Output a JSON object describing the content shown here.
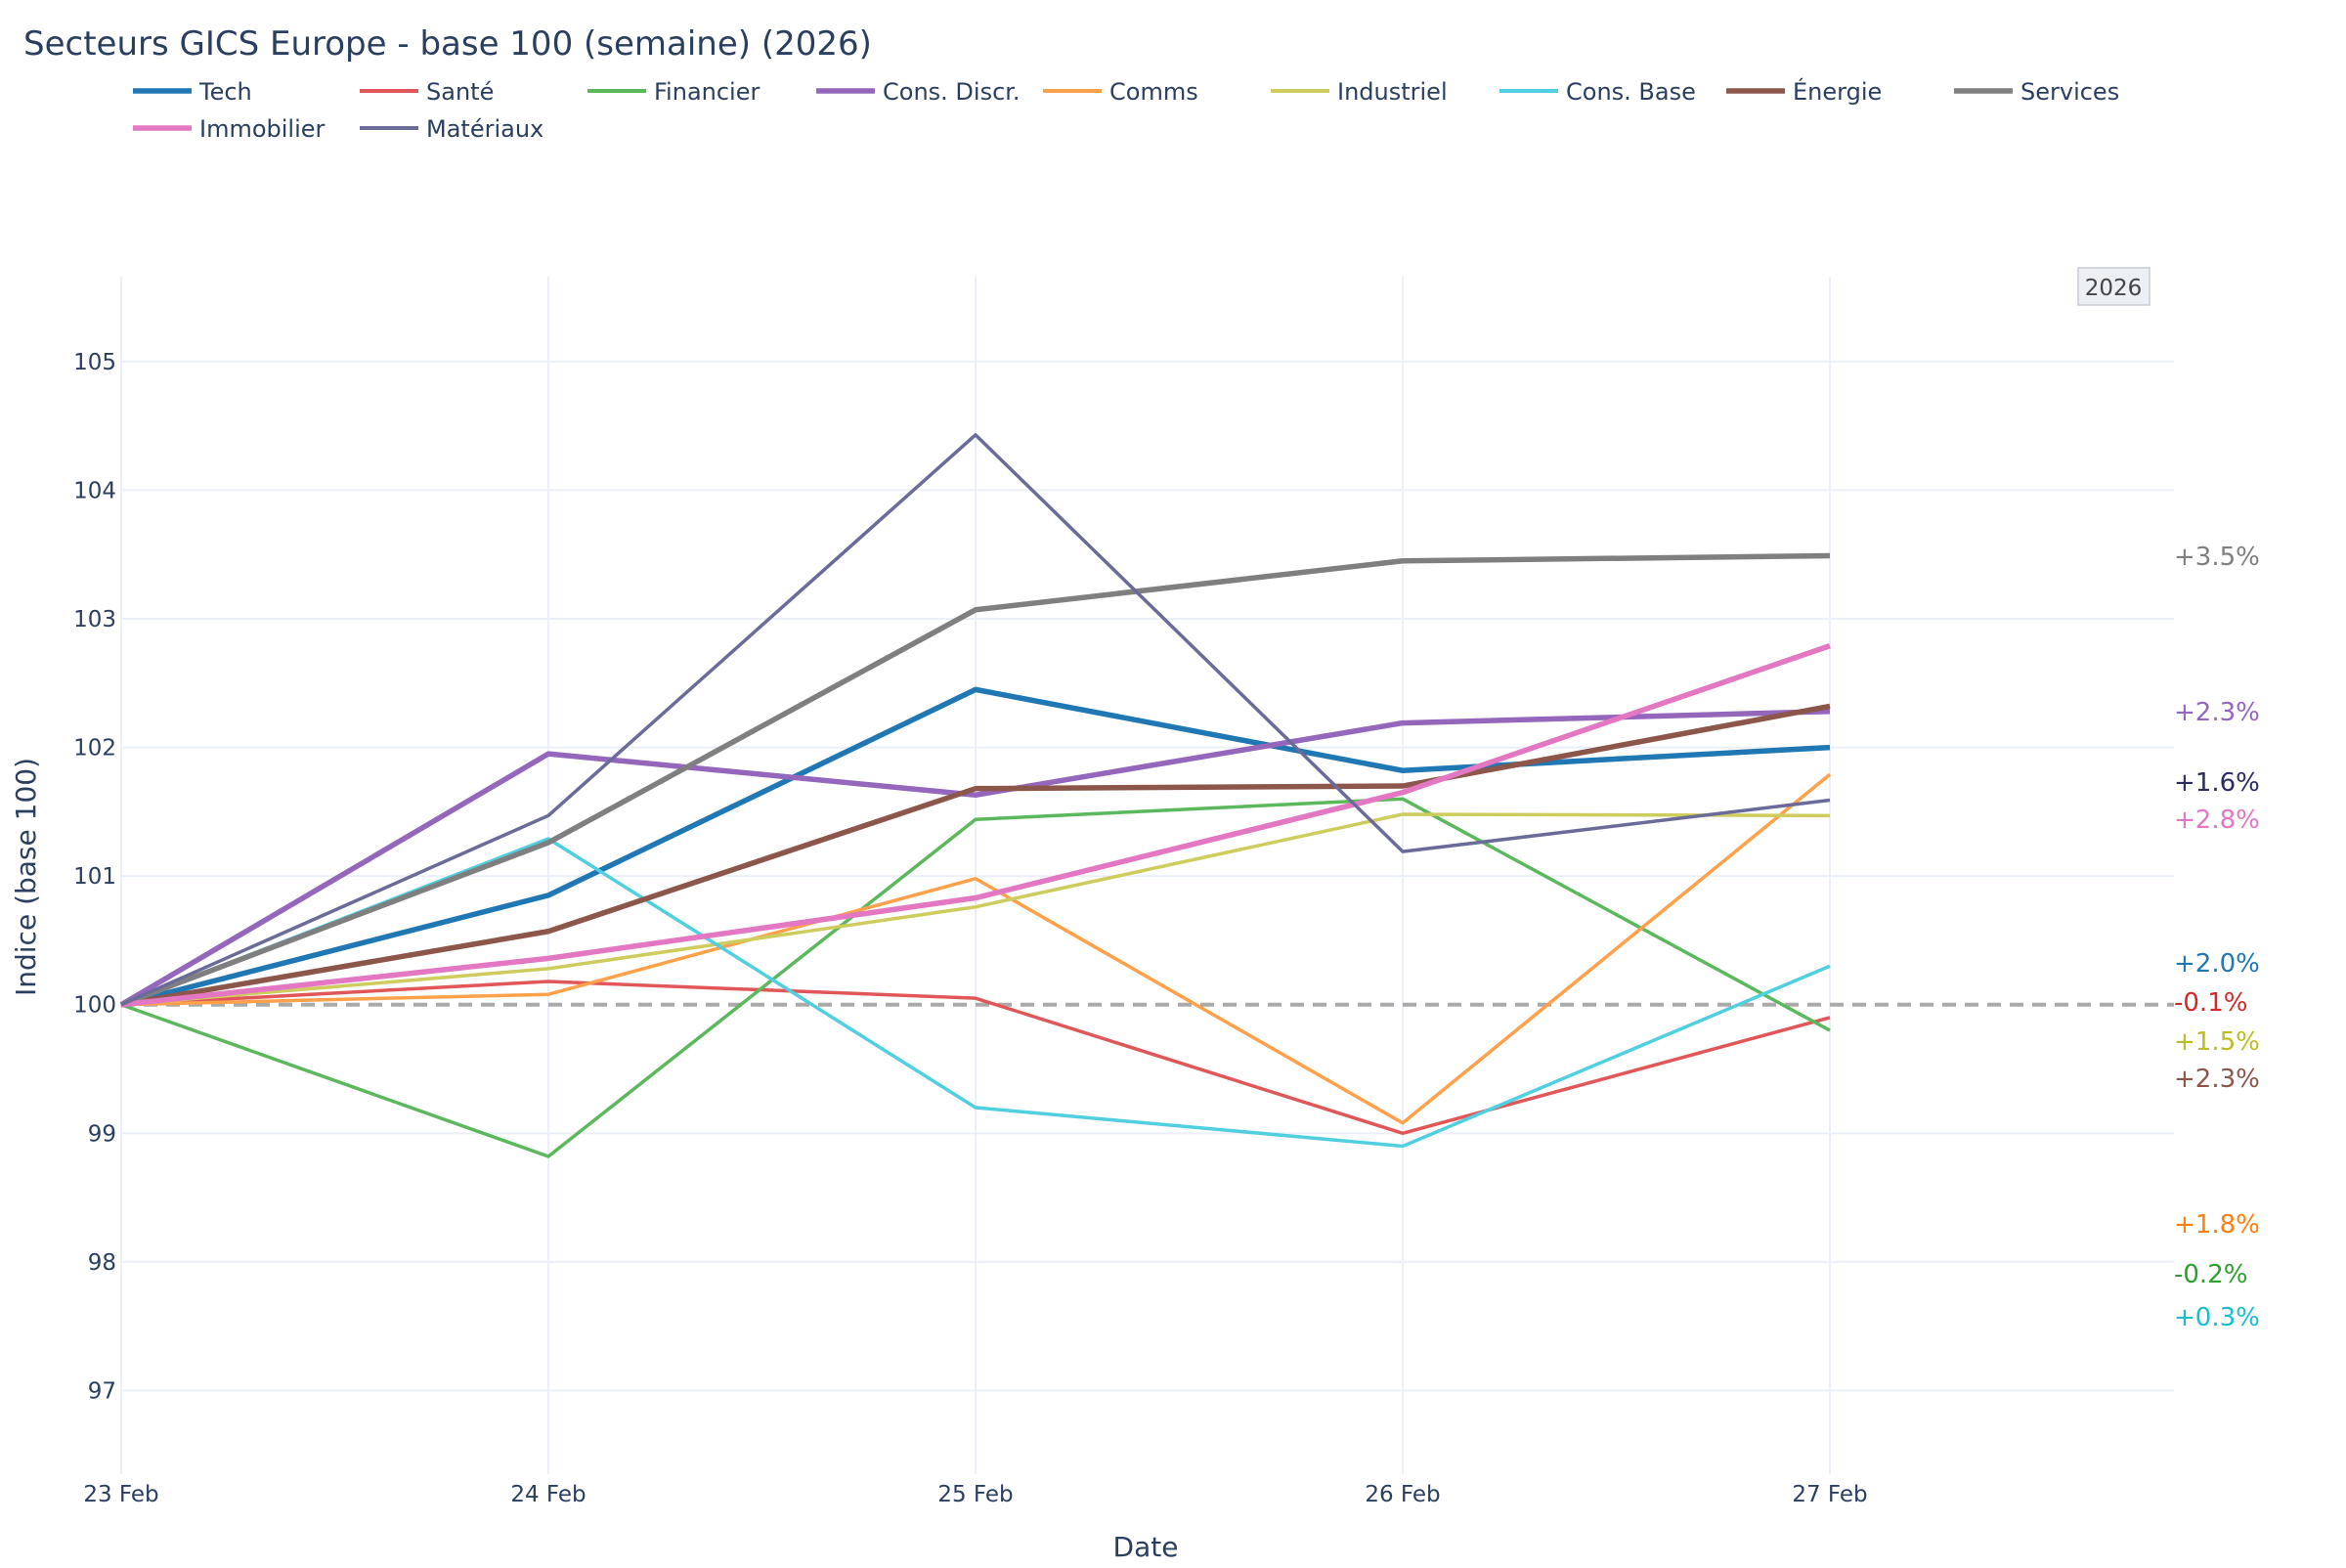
{
  "chart_data": {
    "type": "line",
    "title": "Secteurs GICS Europe - base 100 (semaine) (2026)",
    "xlabel": "Date",
    "ylabel": "Indice (base 100)",
    "categories": [
      "23 Feb",
      "24 Feb",
      "25 Feb",
      "26 Feb",
      "27 Feb"
    ],
    "ylim": [
      96.35,
      105.66
    ],
    "yticks": [
      97,
      98,
      99,
      100,
      101,
      102,
      103,
      104,
      105
    ],
    "grid": true,
    "legend_placement": "top-left",
    "reference_line": {
      "y": 100,
      "style": "dashed",
      "color": "#aaaaaa"
    },
    "year_badge": "2026",
    "series": [
      {
        "name": "Tech",
        "color": "#1f77b4",
        "bold": true,
        "values": [
          100,
          100.85,
          102.45,
          101.82,
          102.0
        ]
      },
      {
        "name": "Santé",
        "color": "#e15759",
        "bold": false,
        "values": [
          100,
          100.18,
          100.05,
          99.0,
          99.9
        ]
      },
      {
        "name": "Financier",
        "color": "#5cb85c",
        "bold": false,
        "values": [
          100,
          98.82,
          101.44,
          101.6,
          99.8
        ]
      },
      {
        "name": "Cons. Discr.",
        "color": "#9467bd",
        "bold": true,
        "values": [
          100,
          101.95,
          101.63,
          102.19,
          102.28
        ]
      },
      {
        "name": "Comms",
        "color": "#ffa04a",
        "bold": false,
        "values": [
          100,
          100.08,
          100.98,
          99.08,
          101.79
        ]
      },
      {
        "name": "Industriel",
        "color": "#cdcc5d",
        "bold": false,
        "values": [
          100,
          100.28,
          100.76,
          101.48,
          101.47
        ]
      },
      {
        "name": "Cons. Base",
        "color": "#4fcfe0",
        "bold": false,
        "values": [
          100,
          101.29,
          99.2,
          98.9,
          100.3
        ]
      },
      {
        "name": "Énergie",
        "color": "#8c564b",
        "bold": true,
        "values": [
          100,
          100.57,
          101.68,
          101.7,
          102.32
        ]
      },
      {
        "name": "Services",
        "color": "#7f7f7f",
        "bold": true,
        "values": [
          100,
          101.26,
          103.07,
          103.45,
          103.49
        ]
      },
      {
        "name": "Immobilier",
        "color": "#e377c2",
        "bold": true,
        "values": [
          100,
          100.36,
          100.83,
          101.65,
          102.79
        ]
      },
      {
        "name": "Matériaux",
        "color": "#6b6b9a",
        "bold": false,
        "values": [
          100,
          101.47,
          104.43,
          101.19,
          101.59
        ]
      }
    ],
    "annotations": [
      {
        "text": "+3.5%",
        "color": "#7f7f7f"
      },
      {
        "text": "+2.3%",
        "color": "#9467bd"
      },
      {
        "text": "+1.6%",
        "color": "#2b2b5e"
      },
      {
        "text": "+2.8%",
        "color": "#e377c2"
      },
      {
        "text": "+2.0%",
        "color": "#1f77b4"
      },
      {
        "text": "-0.1%",
        "color": "#d62728"
      },
      {
        "text": "+1.5%",
        "color": "#bcbd22"
      },
      {
        "text": "+2.3%",
        "color": "#8c564b"
      },
      {
        "text": "+1.8%",
        "color": "#ff7f0e"
      },
      {
        "text": "-0.2%",
        "color": "#2ca02c"
      },
      {
        "text": "+0.3%",
        "color": "#17becf"
      }
    ]
  }
}
